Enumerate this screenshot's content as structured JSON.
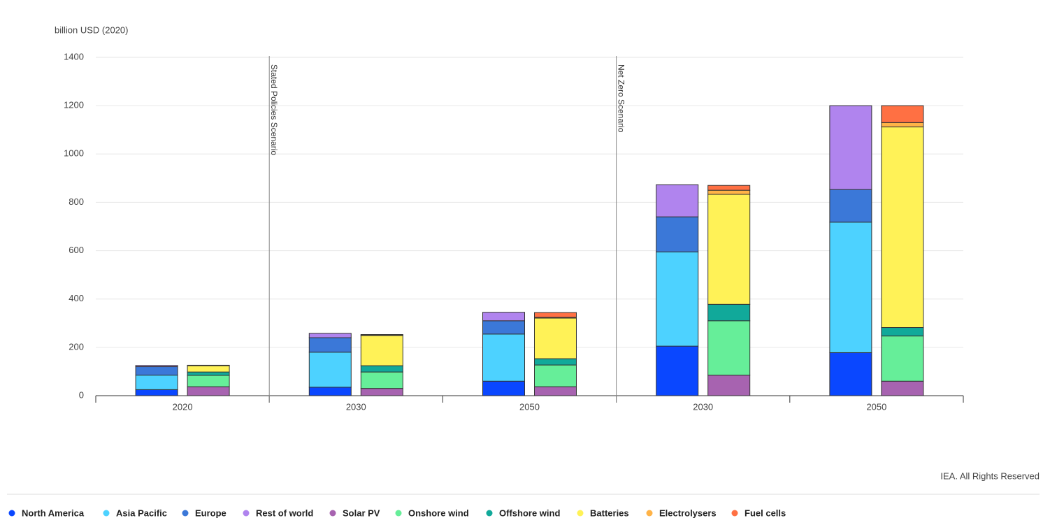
{
  "chart_data": {
    "type": "bar",
    "y_axis_label": "billion USD (2020)",
    "source": "IEA. All Rights Reserved",
    "categories": [
      "2020",
      "2030",
      "2050",
      "2030",
      "2050"
    ],
    "annotations": [
      {
        "text": "Stated Policies Scenario",
        "before": 1
      },
      {
        "text": "Net Zero Scenario",
        "before": 3
      }
    ],
    "ylim": [
      0,
      1400
    ],
    "yticks": [
      0,
      200,
      400,
      600,
      800,
      1000,
      1200,
      1400
    ],
    "grid": true,
    "series": [
      {
        "name": "North America",
        "color": "#0a47ff",
        "stack": 0,
        "values": [
          25,
          35,
          60,
          205,
          178
        ]
      },
      {
        "name": "Asia Pacific",
        "color": "#4dd2ff",
        "stack": 0,
        "values": [
          60,
          145,
          195,
          390,
          540
        ]
      },
      {
        "name": "Europe",
        "color": "#3b78d8",
        "stack": 0,
        "values": [
          35,
          60,
          55,
          145,
          135
        ]
      },
      {
        "name": "Rest of world",
        "color": "#b084ee",
        "stack": 0,
        "values": [
          5,
          18,
          35,
          133,
          347
        ]
      },
      {
        "name": "Solar PV",
        "color": "#a763b0",
        "stack": 1,
        "values": [
          37,
          30,
          37,
          85,
          60
        ]
      },
      {
        "name": "Onshore wind",
        "color": "#66ee99",
        "stack": 1,
        "values": [
          47,
          68,
          90,
          225,
          187
        ]
      },
      {
        "name": "Offshore wind",
        "color": "#11a99a",
        "stack": 1,
        "values": [
          14,
          26,
          26,
          68,
          35
        ]
      },
      {
        "name": "Batteries",
        "color": "#fff257",
        "stack": 1,
        "values": [
          26,
          125,
          168,
          455,
          830
        ]
      },
      {
        "name": "Electrolysers",
        "color": "#ffb347",
        "stack": 1,
        "values": [
          1,
          2,
          3,
          17,
          18
        ]
      },
      {
        "name": "Fuel cells",
        "color": "#ff7043",
        "stack": 1,
        "values": [
          1,
          2,
          20,
          20,
          70
        ]
      }
    ]
  }
}
